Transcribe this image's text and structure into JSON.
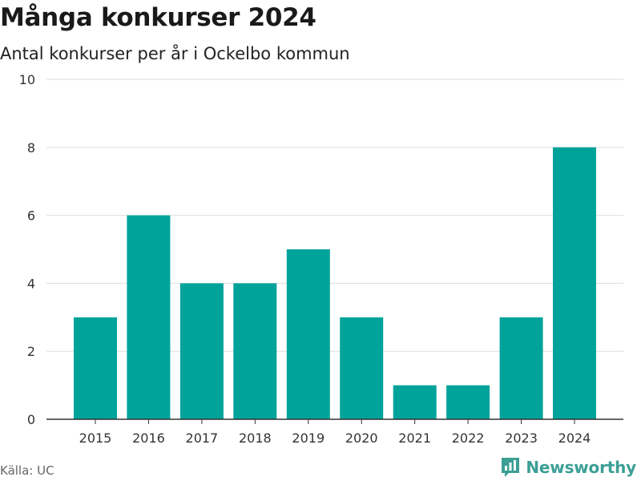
{
  "colors": {
    "bar": "#00a39a",
    "grid": "#dddddd",
    "axis": "#333333",
    "brand": "#3c9f95"
  },
  "branding": {
    "name": "Newsworthy",
    "icon": "bar-chart-logo-icon"
  },
  "source": "Källa: UC",
  "chart_data": {
    "type": "bar",
    "title": "Många konkurser 2024",
    "subtitle": "Antal konkurser per år i Ockelbo kommun",
    "categories": [
      "2015",
      "2016",
      "2017",
      "2018",
      "2019",
      "2020",
      "2021",
      "2022",
      "2023",
      "2024"
    ],
    "values": [
      3,
      6,
      4,
      4,
      5,
      3,
      1,
      1,
      3,
      8
    ],
    "ylim": [
      0,
      10
    ],
    "yticks": [
      0,
      2,
      4,
      6,
      8,
      10
    ],
    "grid": true,
    "xlabel": "",
    "ylabel": ""
  }
}
